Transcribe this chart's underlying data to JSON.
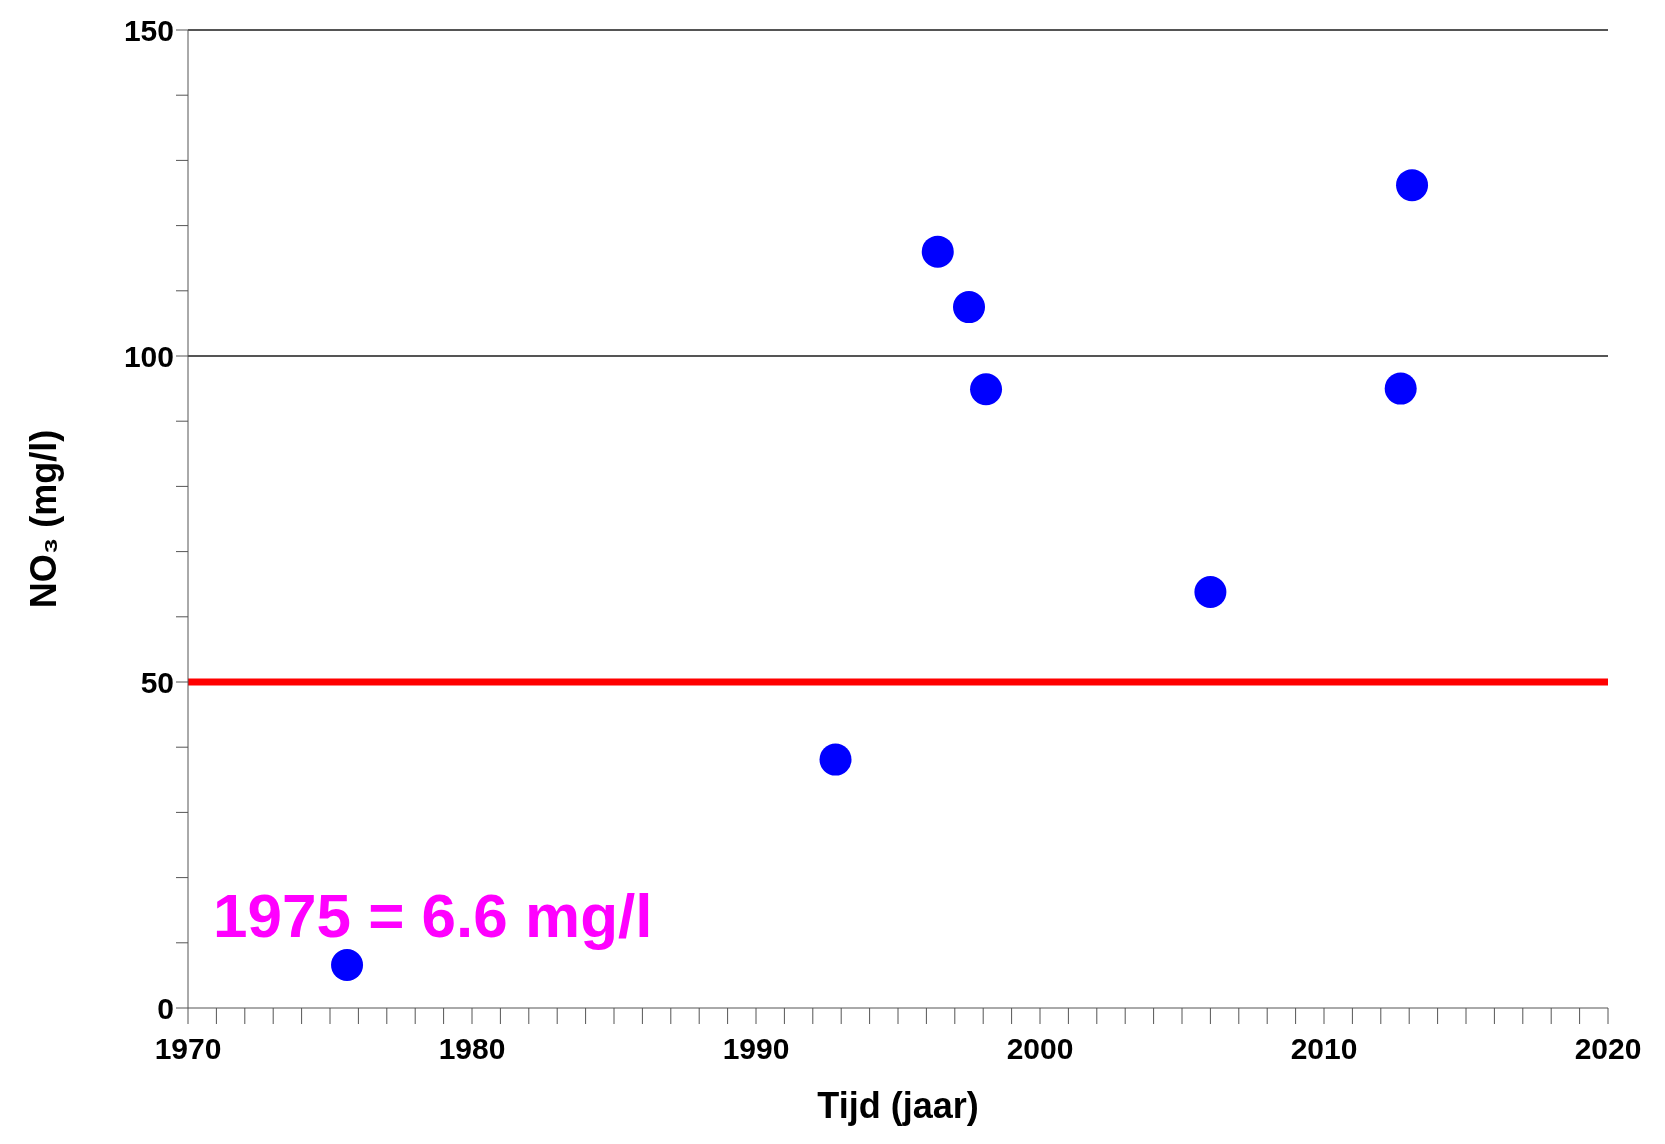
{
  "chart_data": {
    "type": "scatter",
    "xlabel": "Tijd (jaar)",
    "ylabel": "NO₃ (mg/l)",
    "x": [
      1975.6,
      1992.8,
      1996.4,
      1997.5,
      1998.1,
      2006.0,
      2012.7,
      2013.1
    ],
    "values": [
      6.6,
      38.1,
      116.0,
      107.5,
      94.9,
      63.8,
      95.0,
      126.2
    ],
    "color": "#0000ff",
    "marker": "circle",
    "xlim": [
      1970,
      2020
    ],
    "xticks": [
      1970,
      {
        "value": 1971,
        "label": null
      },
      {
        "value": 1972,
        "label": null
      },
      {
        "value": 1973,
        "label": null
      },
      {
        "value": 1974,
        "label": null
      },
      {
        "value": 1975,
        "label": null
      },
      {
        "value": 1976,
        "label": null
      },
      {
        "value": 1977,
        "label": null
      },
      {
        "value": 1978,
        "label": null
      },
      {
        "value": 1979,
        "label": null
      },
      1980,
      {
        "value": 1981,
        "label": null
      },
      {
        "value": 1982,
        "label": null
      },
      {
        "value": 1983,
        "label": null
      },
      {
        "value": 1984,
        "label": null
      },
      {
        "value": 1985,
        "label": null
      },
      {
        "value": 1986,
        "label": null
      },
      {
        "value": 1987,
        "label": null
      },
      {
        "value": 1988,
        "label": null
      },
      {
        "value": 1989,
        "label": null
      },
      1990,
      {
        "value": 1991,
        "label": null
      },
      {
        "value": 1992,
        "label": null
      },
      {
        "value": 1993,
        "label": null
      },
      {
        "value": 1994,
        "label": null
      },
      {
        "value": 1995,
        "label": null
      },
      {
        "value": 1996,
        "label": null
      },
      {
        "value": 1997,
        "label": null
      },
      {
        "value": 1998,
        "label": null
      },
      {
        "value": 1999,
        "label": null
      },
      2000,
      {
        "value": 2001,
        "label": null
      },
      {
        "value": 2002,
        "label": null
      },
      {
        "value": 2003,
        "label": null
      },
      {
        "value": 2004,
        "label": null
      },
      {
        "value": 2005,
        "label": null
      },
      {
        "value": 2006,
        "label": null
      },
      {
        "value": 2007,
        "label": null
      },
      {
        "value": 2008,
        "label": null
      },
      {
        "value": 2009,
        "label": null
      },
      2010,
      {
        "value": 2011,
        "label": null
      },
      {
        "value": 2012,
        "label": null
      },
      {
        "value": 2013,
        "label": null
      },
      {
        "value": 2014,
        "label": null
      },
      {
        "value": 2015,
        "label": null
      },
      {
        "value": 2016,
        "label": null
      },
      {
        "value": 2017,
        "label": null
      },
      {
        "value": 2018,
        "label": null
      },
      {
        "value": 2019,
        "label": null
      },
      2020
    ],
    "ylim": [
      0,
      150
    ],
    "yticks": [
      0,
      {
        "value": 10,
        "label": null
      },
      {
        "value": 20,
        "label": null
      },
      {
        "value": 30,
        "label": null
      },
      {
        "value": 40,
        "label": null
      },
      50,
      {
        "value": 60,
        "label": null
      },
      {
        "value": 70,
        "label": null
      },
      {
        "value": 80,
        "label": null
      },
      {
        "value": 90,
        "label": null
      },
      100,
      {
        "value": 110,
        "label": null
      },
      {
        "value": 120,
        "label": null
      },
      {
        "value": 130,
        "label": null
      },
      {
        "value": 140,
        "label": null
      },
      150
    ],
    "ref_lines": [
      {
        "axis": "y",
        "value": 50,
        "color": "#ff0000"
      },
      {
        "axis": "y",
        "value": 100,
        "color": "#555555"
      },
      {
        "axis": "y",
        "value": 150,
        "color": "#555555"
      }
    ],
    "annotations": [
      "1975 = 6.6 mg/l"
    ]
  }
}
